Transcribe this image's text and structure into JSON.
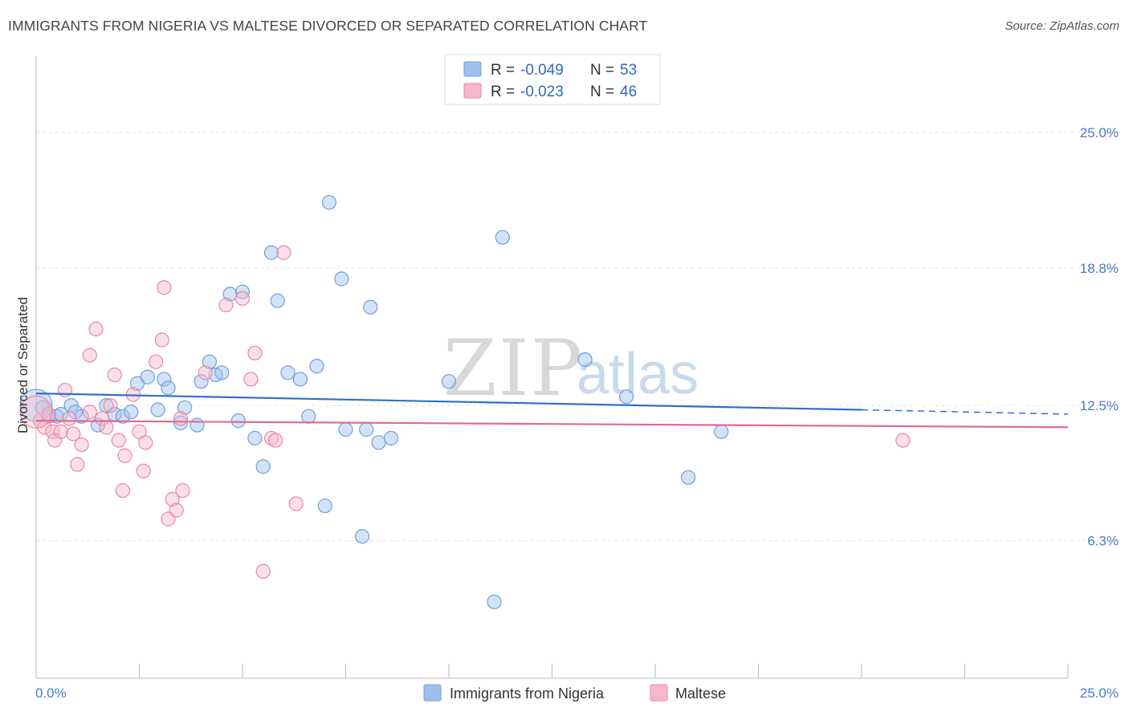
{
  "title": "IMMIGRANTS FROM NIGERIA VS MALTESE DIVORCED OR SEPARATED CORRELATION CHART",
  "source": "Source: ZipAtlas.com",
  "watermark": {
    "zip": "ZIP",
    "atlas": "atlas"
  },
  "legend_box": {
    "rows": [
      {
        "r_label": "R =",
        "r_value": "-0.049",
        "n_label": "N =",
        "n_value": "53",
        "color": "#9dc0ee"
      },
      {
        "r_label": "R =",
        "r_value": "-0.023",
        "n_label": "N =",
        "n_value": "46",
        "color": "#f6b8cb"
      }
    ]
  },
  "chart_data": {
    "type": "scatter",
    "title": "IMMIGRANTS FROM NIGERIA VS MALTESE DIVORCED OR SEPARATED CORRELATION CHART",
    "xlabel": "",
    "ylabel": "Divorced or Separated",
    "xlim": [
      0,
      25
    ],
    "ylim": [
      0,
      28.5
    ],
    "x_tick_labels": [
      "0.0%",
      "25.0%"
    ],
    "y_ticks": [
      6.3,
      12.5,
      18.8,
      25.0
    ],
    "y_tick_labels": [
      "6.3%",
      "12.5%",
      "18.8%",
      "25.0%"
    ],
    "grid": true,
    "legend_placement": "bottom-center",
    "series": [
      {
        "name": "Immigrants from Nigeria",
        "color": "#9dc0ee",
        "stroke": "#6f9edc",
        "trend": {
          "x0": 0,
          "y0": 13.05,
          "x1": 20,
          "y1": 12.3,
          "dash_to_x": 25,
          "dash_to_y": 12.1,
          "color": "#2f6fce"
        },
        "points": [
          [
            0.15,
            12.4
          ],
          [
            0.3,
            12.0
          ],
          [
            0.5,
            12.0
          ],
          [
            0.6,
            12.1
          ],
          [
            0.85,
            12.5
          ],
          [
            0.95,
            12.2
          ],
          [
            1.1,
            12.0
          ],
          [
            1.5,
            11.6
          ],
          [
            1.7,
            12.5
          ],
          [
            1.9,
            12.1
          ],
          [
            2.1,
            12.0
          ],
          [
            2.3,
            12.2
          ],
          [
            2.45,
            13.5
          ],
          [
            2.7,
            13.8
          ],
          [
            2.95,
            12.3
          ],
          [
            3.1,
            13.7
          ],
          [
            3.2,
            13.3
          ],
          [
            3.5,
            11.7
          ],
          [
            3.6,
            12.4
          ],
          [
            3.9,
            11.6
          ],
          [
            4.0,
            13.6
          ],
          [
            4.2,
            14.5
          ],
          [
            4.35,
            13.9
          ],
          [
            4.5,
            14.0
          ],
          [
            4.7,
            17.6
          ],
          [
            4.9,
            11.8
          ],
          [
            5.0,
            17.7
          ],
          [
            5.3,
            11.0
          ],
          [
            5.5,
            9.7
          ],
          [
            5.7,
            19.5
          ],
          [
            5.85,
            17.3
          ],
          [
            6.1,
            14.0
          ],
          [
            6.4,
            13.7
          ],
          [
            6.6,
            12.0
          ],
          [
            6.8,
            14.3
          ],
          [
            7.0,
            7.9
          ],
          [
            7.1,
            21.8
          ],
          [
            7.4,
            18.3
          ],
          [
            7.5,
            11.4
          ],
          [
            7.9,
            6.5
          ],
          [
            8.0,
            11.4
          ],
          [
            8.1,
            17.0
          ],
          [
            8.3,
            10.8
          ],
          [
            8.6,
            11.0
          ],
          [
            10.0,
            13.6
          ],
          [
            11.1,
            3.5
          ],
          [
            11.3,
            20.2
          ],
          [
            13.3,
            14.6
          ],
          [
            14.3,
            12.9
          ],
          [
            15.8,
            9.2
          ],
          [
            16.6,
            11.3
          ]
        ],
        "big_point": [
          0.0,
          12.5
        ]
      },
      {
        "name": "Maltese",
        "color": "#f6b8cb",
        "stroke": "#ea86a6",
        "trend": {
          "x0": 0,
          "y0": 11.8,
          "x1": 25,
          "y1": 11.5,
          "color": "#e06a92"
        },
        "points": [
          [
            0.1,
            11.8
          ],
          [
            0.2,
            11.5
          ],
          [
            0.3,
            12.1
          ],
          [
            0.4,
            11.3
          ],
          [
            0.45,
            10.9
          ],
          [
            0.6,
            11.3
          ],
          [
            0.7,
            13.2
          ],
          [
            0.8,
            11.9
          ],
          [
            0.9,
            11.2
          ],
          [
            1.0,
            9.8
          ],
          [
            1.1,
            10.7
          ],
          [
            1.3,
            12.2
          ],
          [
            1.3,
            14.8
          ],
          [
            1.45,
            16.0
          ],
          [
            1.6,
            11.9
          ],
          [
            1.7,
            11.5
          ],
          [
            1.8,
            12.5
          ],
          [
            1.9,
            13.9
          ],
          [
            2.0,
            10.9
          ],
          [
            2.1,
            8.6
          ],
          [
            2.15,
            10.2
          ],
          [
            2.35,
            13.0
          ],
          [
            2.5,
            11.3
          ],
          [
            2.6,
            9.5
          ],
          [
            2.65,
            10.8
          ],
          [
            2.9,
            14.5
          ],
          [
            3.05,
            15.5
          ],
          [
            3.1,
            17.9
          ],
          [
            3.2,
            7.3
          ],
          [
            3.3,
            8.2
          ],
          [
            3.4,
            7.7
          ],
          [
            3.5,
            11.9
          ],
          [
            3.55,
            8.6
          ],
          [
            4.1,
            14.0
          ],
          [
            4.6,
            17.1
          ],
          [
            5.0,
            17.4
          ],
          [
            5.2,
            13.7
          ],
          [
            5.3,
            14.9
          ],
          [
            5.5,
            4.9
          ],
          [
            5.7,
            11.0
          ],
          [
            5.8,
            10.9
          ],
          [
            6.0,
            19.5
          ],
          [
            6.3,
            8.0
          ],
          [
            21.0,
            10.9
          ]
        ],
        "big_point": [
          0.0,
          12.2
        ]
      }
    ]
  }
}
